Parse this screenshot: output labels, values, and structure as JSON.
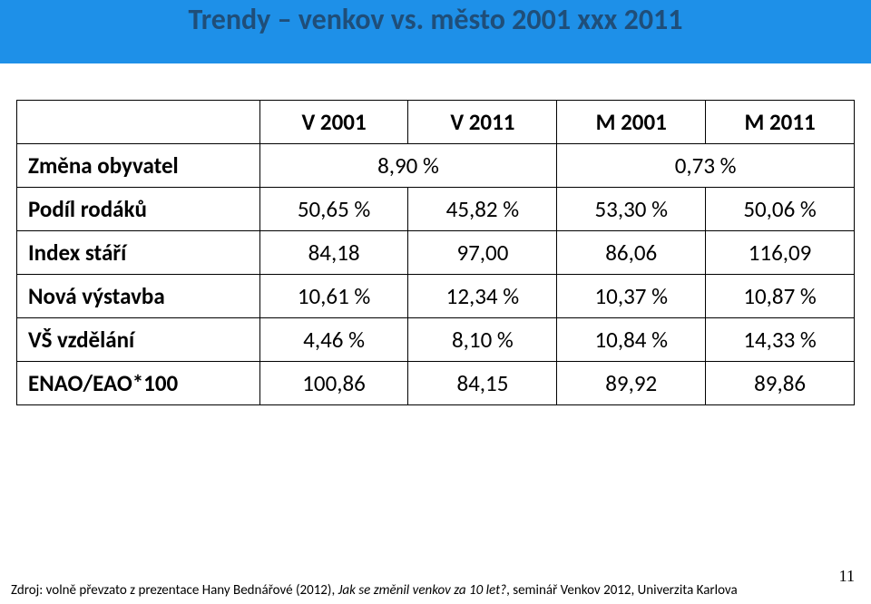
{
  "title": "Trendy – venkov vs. město 2001 xxx 2011",
  "table": {
    "headers": {
      "blank": "",
      "c1": "V 2001",
      "c2": "V 2011",
      "c3": "M 2001",
      "c4": "M 2011"
    },
    "rows": [
      {
        "label": "Změna obyvatel",
        "merged_v": "8,90 %",
        "merged_m": "0,73 %"
      },
      {
        "label": "Podíl rodáků",
        "v1": "50,65 %",
        "v2": "45,82 %",
        "m1": "53,30 %",
        "m2": "50,06 %"
      },
      {
        "label": "Index stáří",
        "v1": "84,18",
        "v2": "97,00",
        "m1": "86,06",
        "m2": "116,09"
      },
      {
        "label": "Nová výstavba",
        "v1": "10,61 %",
        "v2": "12,34 %",
        "m1": "10,37 %",
        "m2": "10,87 %"
      },
      {
        "label": "VŠ vzdělání",
        "v1": "4,46 %",
        "v2": "8,10 %",
        "m1": "10,84 %",
        "m2": "14,33 %"
      },
      {
        "label": "ENAO/EAO*100",
        "v1": "100,86",
        "v2": "84,15",
        "m1": "89,92",
        "m2": "89,86"
      }
    ]
  },
  "footer": {
    "source_prefix": "Zdroj: volně převzato z prezentace Hany Bednářové (2012), ",
    "source_italic": "Jak se změnil venkov za 10 let?",
    "source_suffix": ", seminář Venkov 2012, Univerzita Karlova",
    "page": "11"
  },
  "colors": {
    "band_bg": "#1e90e8",
    "title_color": "#1f4e79",
    "border": "#000000",
    "bg": "#ffffff"
  }
}
